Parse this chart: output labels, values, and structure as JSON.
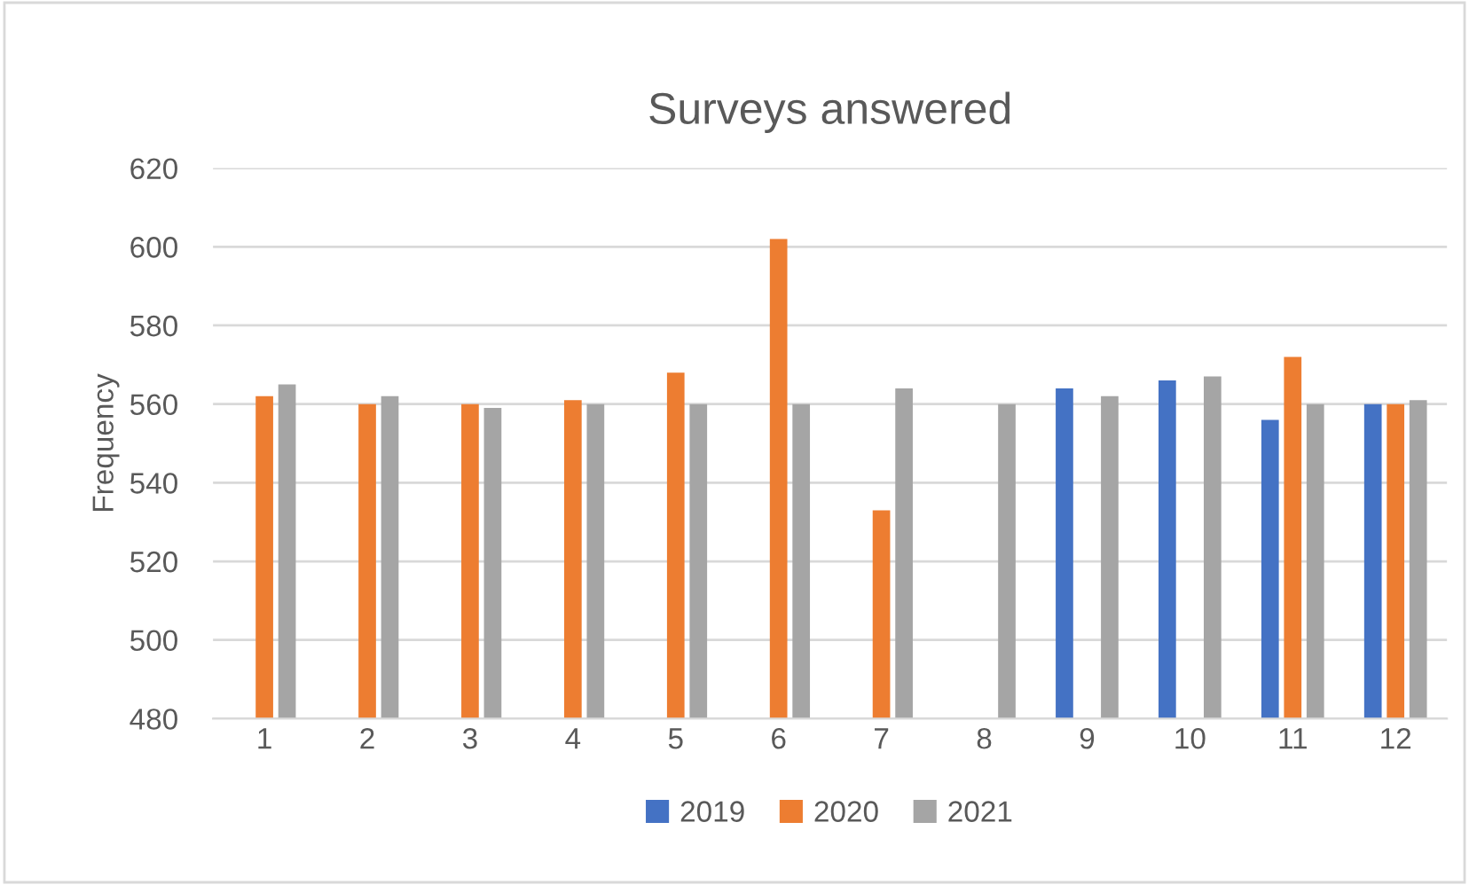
{
  "chart_data": {
    "type": "bar",
    "title": "Surveys answered",
    "ylabel": "Frequency",
    "categories": [
      "1",
      "2",
      "3",
      "4",
      "5",
      "6",
      "7",
      "8",
      "9",
      "10",
      "11",
      "12"
    ],
    "series": [
      {
        "name": "2019",
        "color": "#4472c4",
        "values": [
          null,
          null,
          null,
          null,
          null,
          null,
          null,
          null,
          564,
          566,
          556,
          560
        ]
      },
      {
        "name": "2020",
        "color": "#ed7d31",
        "values": [
          562,
          560,
          560,
          561,
          568,
          602,
          533,
          null,
          null,
          null,
          572,
          560
        ]
      },
      {
        "name": "2021",
        "color": "#a5a5a5",
        "values": [
          565,
          562,
          559,
          560,
          560,
          560,
          564,
          560,
          562,
          567,
          560,
          561
        ]
      }
    ],
    "ylim": [
      480,
      620
    ],
    "yticks": [
      480,
      500,
      520,
      540,
      560,
      580,
      600,
      620
    ],
    "grid": "y",
    "legend": "bottom"
  }
}
